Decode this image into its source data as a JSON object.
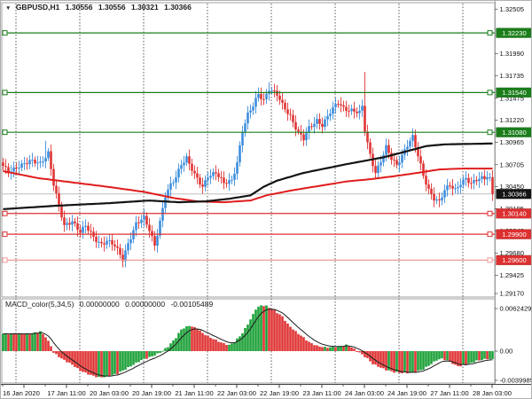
{
  "header": {
    "collapse_icon": "▼",
    "symbol_period": "GBPUSD,H1",
    "open": "1.30556",
    "high": "1.30556",
    "low": "1.30321",
    "close": "1.30366"
  },
  "indicator_label": {
    "name": "MACD_color(5,34,5)",
    "macd_value": "0.00000000",
    "signal_value": "0.00000000",
    "histogram_value": "-0.00105489"
  },
  "colors": {
    "bull_candle": "#3e8ede",
    "bear_candle": "#e03535",
    "macd_up": "#1fa13a",
    "macd_down": "#e03535",
    "macd_signal": "#1a1a1a",
    "ma_black": "#141414",
    "ma_red": "#e01c1c",
    "resistance": "#1b7e1b",
    "support": "#dd3030",
    "support_pale": "#f09a9a",
    "bid_line": "#bdbdbd",
    "bid_badge": "#141414",
    "grid": "#5a5a5a",
    "border": "#a0a0a0",
    "axis_text": "#111111",
    "badge_text": "#ffffff"
  },
  "price_axis": {
    "ticks": [
      "1.32505",
      "1.31990",
      "1.31735",
      "1.31475",
      "1.31220",
      "1.30965",
      "1.30705",
      "1.30450",
      "1.30195",
      "1.29940",
      "1.29680",
      "1.29425",
      "1.29170"
    ],
    "badges": [
      {
        "label": "1.32230",
        "price": 1.3223,
        "fill": "#1b7e1b",
        "type": "resistance-level"
      },
      {
        "label": "1.31540",
        "price": 1.3154,
        "fill": "#1b7e1b",
        "type": "resistance-level"
      },
      {
        "label": "1.31080",
        "price": 1.3108,
        "fill": "#1b7e1b",
        "type": "resistance-level"
      },
      {
        "label": "1.30366",
        "price": 1.30366,
        "fill": "#141414",
        "type": "bid-price"
      },
      {
        "label": "1.30140",
        "price": 1.3014,
        "fill": "#dd3030",
        "type": "support-level"
      },
      {
        "label": "1.29900",
        "price": 1.299,
        "fill": "#dd3030",
        "type": "support-level"
      },
      {
        "label": "1.29600",
        "price": 1.296,
        "fill": "#dd3030",
        "type": "support-level"
      }
    ]
  },
  "chart_data": {
    "type": "candlestick",
    "title": "GBPUSD,H1",
    "x_axis": {
      "labels": [
        "16 Jan 2020",
        "17 Jan 11:00",
        "20 Jan 03:00",
        "20 Jan 19:00",
        "21 Jan 11:00",
        "22 Jan 03:00",
        "22 Jan 19:00",
        "23 Jan 11:00",
        "24 Jan 03:00",
        "24 Jan 19:00",
        "27 Jan 11:00",
        "28 Jan 03:00"
      ]
    },
    "price_range": {
      "top": 1.3258,
      "bottom": 1.29173
    },
    "bars": {
      "count": 185,
      "close_path": [
        [
          0,
          1.3068
        ],
        [
          2,
          1.3061
        ],
        [
          6,
          1.307
        ],
        [
          10,
          1.3074
        ],
        [
          14,
          1.3072
        ],
        [
          17,
          1.3085
        ],
        [
          19,
          1.3048
        ],
        [
          21,
          1.3022
        ],
        [
          23,
          1.2999
        ],
        [
          26,
          1.3006
        ],
        [
          29,
          1.2993
        ],
        [
          31,
          1.2999
        ],
        [
          34,
          1.2986
        ],
        [
          37,
          1.2979
        ],
        [
          39,
          1.2983
        ],
        [
          42,
          1.2976
        ],
        [
          45,
          1.2961
        ],
        [
          47,
          1.298
        ],
        [
          50,
          1.3002
        ],
        [
          53,
          1.3008
        ],
        [
          55,
          1.2995
        ],
        [
          57,
          1.2978
        ],
        [
          59,
          1.3005
        ],
        [
          61,
          1.3034
        ],
        [
          63,
          1.3046
        ],
        [
          65,
          1.3056
        ],
        [
          67,
          1.3072
        ],
        [
          69,
          1.3079
        ],
        [
          72,
          1.3058
        ],
        [
          75,
          1.3044
        ],
        [
          77,
          1.3058
        ],
        [
          80,
          1.3062
        ],
        [
          83,
          1.3048
        ],
        [
          86,
          1.3052
        ],
        [
          88,
          1.3074
        ],
        [
          90,
          1.311
        ],
        [
          92,
          1.3128
        ],
        [
          94,
          1.3138
        ],
        [
          96,
          1.3152
        ],
        [
          98,
          1.3146
        ],
        [
          100,
          1.3159
        ],
        [
          103,
          1.3151
        ],
        [
          105,
          1.3139
        ],
        [
          108,
          1.3127
        ],
        [
          111,
          1.3108
        ],
        [
          113,
          1.31
        ],
        [
          115,
          1.3112
        ],
        [
          118,
          1.3122
        ],
        [
          120,
          1.3117
        ],
        [
          123,
          1.3131
        ],
        [
          126,
          1.3142
        ],
        [
          128,
          1.3136
        ],
        [
          131,
          1.3134
        ],
        [
          134,
          1.313
        ],
        [
          135,
          1.3137
        ],
        [
          136,
          1.311
        ],
        [
          137,
          1.3095
        ],
        [
          138,
          1.3082
        ],
        [
          140,
          1.3062
        ],
        [
          142,
          1.3075
        ],
        [
          144,
          1.309
        ],
        [
          146,
          1.3077
        ],
        [
          148,
          1.307
        ],
        [
          150,
          1.3082
        ],
        [
          152,
          1.3094
        ],
        [
          154,
          1.3102
        ],
        [
          156,
          1.308
        ],
        [
          158,
          1.3058
        ],
        [
          160,
          1.3042
        ],
        [
          162,
          1.3032
        ],
        [
          164,
          1.3027
        ],
        [
          166,
          1.304
        ],
        [
          168,
          1.3047
        ],
        [
          170,
          1.3042
        ],
        [
          172,
          1.305
        ],
        [
          174,
          1.3054
        ],
        [
          176,
          1.3047
        ],
        [
          178,
          1.3053
        ],
        [
          180,
          1.3056
        ],
        [
          183,
          1.3056
        ],
        [
          184,
          1.30366
        ]
      ],
      "wick_extremes": [
        {
          "i": 16,
          "high": 1.3098
        },
        {
          "i": 45,
          "low": 1.2952
        },
        {
          "i": 57,
          "low": 1.2971
        },
        {
          "i": 96,
          "high": 1.316
        },
        {
          "i": 100,
          "high": 1.3166
        },
        {
          "i": 113,
          "low": 1.3092
        },
        {
          "i": 136,
          "high": 1.3178
        },
        {
          "i": 140,
          "low": 1.3054
        },
        {
          "i": 154,
          "high": 1.3109
        },
        {
          "i": 164,
          "low": 1.3022
        },
        {
          "i": 184,
          "low": 1.3033
        }
      ]
    },
    "overlays": {
      "ma_black": [
        [
          0,
          1.3019
        ],
        [
          20,
          1.3023
        ],
        [
          40,
          1.3026
        ],
        [
          55,
          1.3029
        ],
        [
          66,
          1.3027
        ],
        [
          76,
          1.3028
        ],
        [
          85,
          1.3031
        ],
        [
          93,
          1.3035
        ],
        [
          98,
          1.3045
        ],
        [
          103,
          1.3052
        ],
        [
          113,
          1.3061
        ],
        [
          129,
          1.3071
        ],
        [
          143,
          1.3079
        ],
        [
          153,
          1.3087
        ],
        [
          159,
          1.3092
        ],
        [
          166,
          1.3094
        ],
        [
          184,
          1.3095
        ]
      ],
      "ma_red": [
        [
          0,
          1.3063
        ],
        [
          13,
          1.3055
        ],
        [
          26,
          1.305
        ],
        [
          39,
          1.3045
        ],
        [
          53,
          1.3039
        ],
        [
          64,
          1.3032
        ],
        [
          73,
          1.3028
        ],
        [
          83,
          1.3027
        ],
        [
          93,
          1.3029
        ],
        [
          99,
          1.3035
        ],
        [
          109,
          1.3041
        ],
        [
          119,
          1.3046
        ],
        [
          129,
          1.3051
        ],
        [
          139,
          1.3054
        ],
        [
          149,
          1.3058
        ],
        [
          158,
          1.3062
        ],
        [
          164,
          1.3065
        ],
        [
          173,
          1.3066
        ],
        [
          184,
          1.3066
        ]
      ],
      "levels": [
        {
          "price": 1.3223,
          "label": "1.32230",
          "kind": "resistance",
          "line": "#1b7e1b"
        },
        {
          "price": 1.3154,
          "label": "1.31540",
          "kind": "resistance",
          "line": "#1b7e1b"
        },
        {
          "price": 1.3108,
          "label": "1.31080",
          "kind": "resistance",
          "line": "#1b7e1b"
        },
        {
          "price": 1.3014,
          "label": "1.30140",
          "kind": "support",
          "line": "#dd3030"
        },
        {
          "price": 1.299,
          "label": "1.29900",
          "kind": "support",
          "line": "#dd3030"
        },
        {
          "price": 1.296,
          "label": "1.29600",
          "kind": "support",
          "line": "#f09a9a"
        }
      ],
      "bid": {
        "price": 1.30366,
        "label": "1.30366"
      }
    },
    "indicator": {
      "type": "macd_histogram",
      "name": "MACD_color(5,34,5)",
      "y_axis": {
        "max_label": "0.0062429",
        "zero_label": "0.00",
        "min_label": "-0.0039985"
      },
      "range": {
        "max": 0.0062429,
        "min": -0.0039985
      },
      "current_value": -0.00105489,
      "path": [
        [
          0,
          0.0023
        ],
        [
          10,
          0.0023
        ],
        [
          14,
          0.0026
        ],
        [
          16,
          0.0019
        ],
        [
          18,
          0.0007
        ],
        [
          19,
          -0.0002
        ],
        [
          22,
          -0.001
        ],
        [
          26,
          -0.0018
        ],
        [
          29,
          -0.0026
        ],
        [
          33,
          -0.0032
        ],
        [
          36,
          -0.0035
        ],
        [
          39,
          -0.0034
        ],
        [
          43,
          -0.003
        ],
        [
          46,
          -0.0024
        ],
        [
          49,
          -0.0018
        ],
        [
          52,
          -0.0012
        ],
        [
          56,
          -0.0007
        ],
        [
          59,
          -0.0002
        ],
        [
          62,
          0.0006
        ],
        [
          65,
          0.0018
        ],
        [
          67,
          0.0029
        ],
        [
          70,
          0.0034
        ],
        [
          73,
          0.003
        ],
        [
          75,
          0.0024
        ],
        [
          78,
          0.0018
        ],
        [
          81,
          0.0013
        ],
        [
          83,
          0.001
        ],
        [
          85,
          0.0008
        ],
        [
          87,
          0.0012
        ],
        [
          90,
          0.0024
        ],
        [
          93,
          0.0042
        ],
        [
          95,
          0.0056
        ],
        [
          97,
          0.0061
        ],
        [
          99,
          0.006
        ],
        [
          102,
          0.0054
        ],
        [
          105,
          0.0046
        ],
        [
          107,
          0.0036
        ],
        [
          110,
          0.0026
        ],
        [
          113,
          0.0018
        ],
        [
          115,
          0.0012
        ],
        [
          118,
          0.0007
        ],
        [
          121,
          0.0005
        ],
        [
          123,
          0.0005
        ],
        [
          126,
          0.0006
        ],
        [
          129,
          0.0008
        ],
        [
          131,
          0.0005
        ],
        [
          134,
          -0.0002
        ],
        [
          137,
          -0.001
        ],
        [
          139,
          -0.0017
        ],
        [
          142,
          -0.0022
        ],
        [
          144,
          -0.0025
        ],
        [
          147,
          -0.0028
        ],
        [
          150,
          -0.0029
        ],
        [
          152,
          -0.0029
        ],
        [
          155,
          -0.0028
        ],
        [
          158,
          -0.0024
        ],
        [
          161,
          -0.0017
        ],
        [
          163,
          -0.0012
        ],
        [
          165,
          -0.001
        ],
        [
          168,
          -0.0014
        ],
        [
          170,
          -0.0019
        ],
        [
          172,
          -0.002
        ],
        [
          175,
          -0.0017
        ],
        [
          178,
          -0.0013
        ],
        [
          181,
          -0.0011
        ],
        [
          184,
          -0.00105489
        ]
      ]
    }
  }
}
